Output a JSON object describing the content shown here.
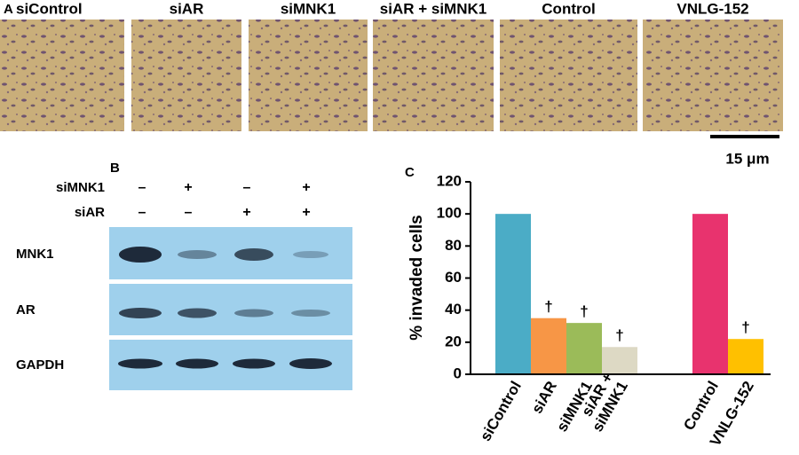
{
  "panel_a": {
    "label": "A",
    "images": [
      "siControl",
      "siAR",
      "siMNK1",
      "siAR + siMNK1",
      "Control",
      "VNLG-152"
    ],
    "scale_bar": "15 μm"
  },
  "panel_b": {
    "label": "B",
    "conditions": [
      {
        "name": "siMNK1",
        "signs": [
          "–",
          "+",
          "–",
          "+"
        ]
      },
      {
        "name": "siAR",
        "signs": [
          "–",
          "–",
          "+",
          "+"
        ]
      }
    ],
    "blots": [
      "MNK1",
      "AR",
      "GAPDH"
    ]
  },
  "chart_data": {
    "type": "bar",
    "label": "C",
    "y_label": "% invaded cells",
    "categories": [
      "siControl",
      "siAR",
      "siMNK1",
      "siAR +\nsiMNK1",
      null,
      "Control",
      "VNLG-152"
    ],
    "values": [
      100,
      35,
      32,
      17,
      null,
      100,
      22
    ],
    "colors": [
      "#4bacc6",
      "#f79646",
      "#9bbb59",
      "#ddd9c4",
      null,
      "#e8336e",
      "#ffc000"
    ],
    "significance": [
      null,
      "†",
      "†",
      "†",
      null,
      null,
      "†"
    ],
    "ylim": [
      0,
      120
    ],
    "yticks": [
      0,
      20,
      40,
      60,
      80,
      100,
      120
    ]
  }
}
